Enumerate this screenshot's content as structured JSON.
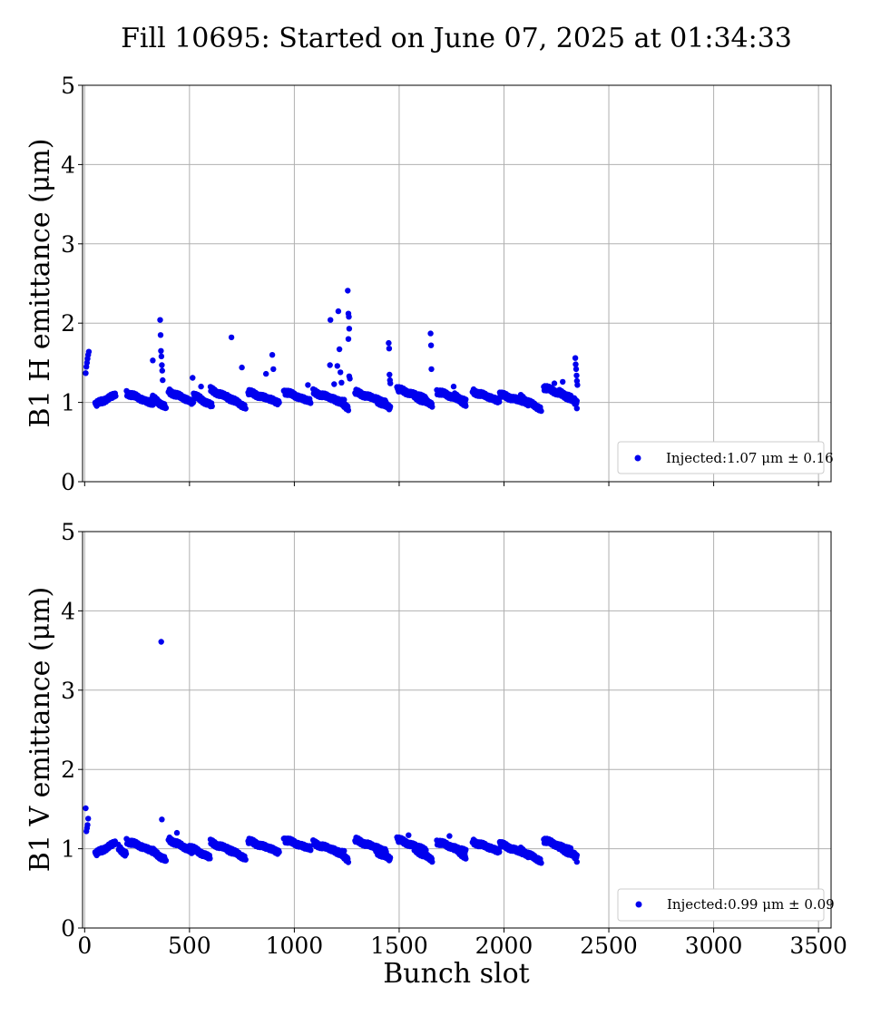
{
  "figure": {
    "title": "Fill 10695: Started on June 07, 2025 at 01:34:33",
    "xlabel": "Bunch slot"
  },
  "colors": {
    "marker": "#0000ee",
    "grid": "#b0b0b0",
    "axes": "#000000"
  },
  "chart_data": [
    {
      "type": "scatter",
      "title": "",
      "xlabel": "",
      "ylabel": "B1 H emittance (μm)",
      "xlim": [
        -10,
        3560
      ],
      "ylim": [
        0,
        5
      ],
      "xticks": [
        0,
        500,
        1000,
        1500,
        2000,
        2500,
        3000,
        3500
      ],
      "yticks": [
        0,
        1,
        2,
        3,
        4,
        5
      ],
      "grid": true,
      "legend_position": "lower-right",
      "series": [
        {
          "name": "Injected:1.07 μm ± 0.16",
          "trains": [
            {
              "start": 50,
              "count": 40,
              "spacing": 2.5,
              "from": 0.97,
              "to": 1.1
            },
            {
              "start": 200,
              "count": 52,
              "spacing": 2.5,
              "from": 1.12,
              "to": 0.98
            },
            {
              "start": 320,
              "count": 28,
              "spacing": 2.5,
              "from": 1.06,
              "to": 0.94
            },
            {
              "start": 400,
              "count": 48,
              "spacing": 2.5,
              "from": 1.14,
              "to": 1.0
            },
            {
              "start": 520,
              "count": 36,
              "spacing": 2.5,
              "from": 1.09,
              "to": 0.96
            },
            {
              "start": 600,
              "count": 48,
              "spacing": 2.5,
              "from": 1.16,
              "to": 1.02
            },
            {
              "start": 680,
              "count": 36,
              "spacing": 2.5,
              "from": 1.07,
              "to": 0.94
            },
            {
              "start": 780,
              "count": 60,
              "spacing": 2.5,
              "from": 1.13,
              "to": 1.0
            },
            {
              "start": 950,
              "count": 52,
              "spacing": 2.5,
              "from": 1.14,
              "to": 1.01
            },
            {
              "start": 1090,
              "count": 60,
              "spacing": 2.5,
              "from": 1.13,
              "to": 1.0
            },
            {
              "start": 1190,
              "count": 28,
              "spacing": 2.5,
              "from": 1.05,
              "to": 0.93
            },
            {
              "start": 1290,
              "count": 60,
              "spacing": 2.5,
              "from": 1.13,
              "to": 1.0
            },
            {
              "start": 1390,
              "count": 28,
              "spacing": 2.5,
              "from": 1.03,
              "to": 0.93
            },
            {
              "start": 1490,
              "count": 56,
              "spacing": 2.5,
              "from": 1.17,
              "to": 1.05
            },
            {
              "start": 1570,
              "count": 36,
              "spacing": 2.5,
              "from": 1.08,
              "to": 0.97
            },
            {
              "start": 1680,
              "count": 56,
              "spacing": 2.5,
              "from": 1.14,
              "to": 1.01
            },
            {
              "start": 1760,
              "count": 24,
              "spacing": 2.5,
              "from": 1.09,
              "to": 0.98
            },
            {
              "start": 1850,
              "count": 52,
              "spacing": 2.5,
              "from": 1.14,
              "to": 1.02
            },
            {
              "start": 1980,
              "count": 56,
              "spacing": 2.5,
              "from": 1.1,
              "to": 0.99
            },
            {
              "start": 2080,
              "count": 40,
              "spacing": 2.5,
              "from": 1.06,
              "to": 0.91
            },
            {
              "start": 2190,
              "count": 52,
              "spacing": 2.5,
              "from": 1.19,
              "to": 1.06
            },
            {
              "start": 2260,
              "count": 36,
              "spacing": 2.5,
              "from": 1.13,
              "to": 1.0
            },
            {
              "start": 2330,
              "count": 8,
              "spacing": 2.5,
              "from": 1.05,
              "to": 0.96
            }
          ],
          "points": [
            [
              5,
              1.37
            ],
            [
              8,
              1.45
            ],
            [
              11,
              1.5
            ],
            [
              14,
              1.55
            ],
            [
              17,
              1.6
            ],
            [
              20,
              1.64
            ],
            [
              325,
              1.53
            ],
            [
              360,
              2.04
            ],
            [
              362,
              1.85
            ],
            [
              364,
              1.65
            ],
            [
              366,
              1.58
            ],
            [
              368,
              1.47
            ],
            [
              370,
              1.4
            ],
            [
              372,
              1.28
            ],
            [
              515,
              1.31
            ],
            [
              555,
              1.2
            ],
            [
              700,
              1.82
            ],
            [
              750,
              1.44
            ],
            [
              865,
              1.36
            ],
            [
              895,
              1.6
            ],
            [
              900,
              1.42
            ],
            [
              1065,
              1.22
            ],
            [
              1170,
              1.47
            ],
            [
              1172,
              2.04
            ],
            [
              1190,
              1.23
            ],
            [
              1205,
              1.46
            ],
            [
              1210,
              2.15
            ],
            [
              1215,
              1.67
            ],
            [
              1220,
              1.38
            ],
            [
              1225,
              1.25
            ],
            [
              1255,
              2.41
            ],
            [
              1258,
              2.12
            ],
            [
              1260,
              2.08
            ],
            [
              1262,
              1.93
            ],
            [
              1258,
              1.8
            ],
            [
              1262,
              1.33
            ],
            [
              1265,
              1.3
            ],
            [
              1450,
              1.75
            ],
            [
              1452,
              1.68
            ],
            [
              1454,
              1.35
            ],
            [
              1456,
              1.28
            ],
            [
              1458,
              1.24
            ],
            [
              1650,
              1.87
            ],
            [
              1652,
              1.72
            ],
            [
              1654,
              1.42
            ],
            [
              1760,
              1.2
            ],
            [
              2240,
              1.24
            ],
            [
              2280,
              1.26
            ],
            [
              2340,
              1.56
            ],
            [
              2342,
              1.48
            ],
            [
              2344,
              1.42
            ],
            [
              2346,
              1.34
            ],
            [
              2348,
              1.27
            ],
            [
              2350,
              1.22
            ]
          ]
        }
      ]
    },
    {
      "type": "scatter",
      "title": "",
      "xlabel": "Bunch slot",
      "ylabel": "B1 V emittance (μm)",
      "xlim": [
        -10,
        3560
      ],
      "ylim": [
        0,
        5
      ],
      "xticks": [
        0,
        500,
        1000,
        1500,
        2000,
        2500,
        3000,
        3500
      ],
      "yticks": [
        0,
        1,
        2,
        3,
        4,
        5
      ],
      "grid": true,
      "legend_position": "lower-right",
      "series": [
        {
          "name": "Injected:0.99 μm ± 0.09",
          "trains": [
            {
              "start": 50,
              "count": 40,
              "spacing": 2.5,
              "from": 0.93,
              "to": 1.08
            },
            {
              "start": 160,
              "count": 16,
              "spacing": 2.5,
              "from": 1.02,
              "to": 0.93
            },
            {
              "start": 200,
              "count": 52,
              "spacing": 2.5,
              "from": 1.1,
              "to": 0.97
            },
            {
              "start": 320,
              "count": 28,
              "spacing": 2.5,
              "from": 0.97,
              "to": 0.86
            },
            {
              "start": 400,
              "count": 48,
              "spacing": 2.5,
              "from": 1.12,
              "to": 0.96
            },
            {
              "start": 500,
              "count": 40,
              "spacing": 2.5,
              "from": 1.02,
              "to": 0.89
            },
            {
              "start": 600,
              "count": 48,
              "spacing": 2.5,
              "from": 1.08,
              "to": 0.96
            },
            {
              "start": 680,
              "count": 36,
              "spacing": 2.5,
              "from": 1.0,
              "to": 0.88
            },
            {
              "start": 780,
              "count": 60,
              "spacing": 2.5,
              "from": 1.1,
              "to": 0.96
            },
            {
              "start": 950,
              "count": 52,
              "spacing": 2.5,
              "from": 1.12,
              "to": 1.0
            },
            {
              "start": 1090,
              "count": 60,
              "spacing": 2.5,
              "from": 1.07,
              "to": 0.94
            },
            {
              "start": 1190,
              "count": 28,
              "spacing": 2.5,
              "from": 0.99,
              "to": 0.86
            },
            {
              "start": 1290,
              "count": 60,
              "spacing": 2.5,
              "from": 1.11,
              "to": 0.97
            },
            {
              "start": 1390,
              "count": 28,
              "spacing": 2.5,
              "from": 0.97,
              "to": 0.87
            },
            {
              "start": 1490,
              "count": 56,
              "spacing": 2.5,
              "from": 1.12,
              "to": 0.98
            },
            {
              "start": 1570,
              "count": 36,
              "spacing": 2.5,
              "from": 1.0,
              "to": 0.86
            },
            {
              "start": 1680,
              "count": 56,
              "spacing": 2.5,
              "from": 1.09,
              "to": 0.96
            },
            {
              "start": 1760,
              "count": 24,
              "spacing": 2.5,
              "from": 1.01,
              "to": 0.9
            },
            {
              "start": 1850,
              "count": 52,
              "spacing": 2.5,
              "from": 1.09,
              "to": 0.97
            },
            {
              "start": 1980,
              "count": 56,
              "spacing": 2.5,
              "from": 1.06,
              "to": 0.92
            },
            {
              "start": 2080,
              "count": 40,
              "spacing": 2.5,
              "from": 0.98,
              "to": 0.84
            },
            {
              "start": 2190,
              "count": 52,
              "spacing": 2.5,
              "from": 1.11,
              "to": 0.98
            },
            {
              "start": 2260,
              "count": 36,
              "spacing": 2.5,
              "from": 1.02,
              "to": 0.9
            },
            {
              "start": 2330,
              "count": 8,
              "spacing": 2.5,
              "from": 0.94,
              "to": 0.87
            }
          ],
          "points": [
            [
              5,
              1.51
            ],
            [
              8,
              1.22
            ],
            [
              11,
              1.26
            ],
            [
              14,
              1.3
            ],
            [
              17,
              1.38
            ],
            [
              365,
              3.61
            ],
            [
              368,
              1.37
            ],
            [
              440,
              1.2
            ],
            [
              1545,
              1.17
            ],
            [
              1740,
              1.16
            ]
          ]
        }
      ]
    }
  ]
}
